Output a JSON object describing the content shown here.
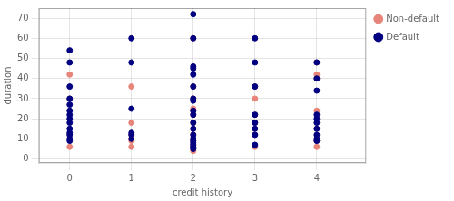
{
  "chart_data": {
    "type": "scatter",
    "xlabel": "credit history",
    "ylabel": "duration",
    "series": [
      {
        "name": "Non-default",
        "color": "#E8857A",
        "x": [
          0,
          0,
          0,
          1,
          1,
          1,
          1,
          1,
          1,
          2,
          2,
          2,
          2,
          2,
          2,
          2,
          2,
          2,
          2,
          2,
          2,
          2,
          2,
          2,
          3,
          3,
          3,
          3,
          3,
          3,
          4,
          4,
          4,
          4,
          4,
          4,
          4
        ],
        "values": [
          42,
          30,
          6,
          36,
          18,
          12,
          10,
          9,
          6,
          60,
          36,
          30,
          25,
          24,
          22,
          18,
          15,
          12,
          10,
          9,
          7,
          6,
          5,
          4,
          36,
          30,
          22,
          18,
          12,
          6,
          48,
          42,
          40,
          24,
          15,
          9,
          6
        ]
      },
      {
        "name": "Default",
        "color": "#000080",
        "x": [
          0,
          0,
          0,
          0,
          0,
          0,
          0,
          0,
          0,
          0,
          0,
          0,
          0,
          0,
          1,
          1,
          1,
          1,
          1,
          1,
          2,
          2,
          2,
          2,
          2,
          2,
          2,
          2,
          2,
          2,
          2,
          2,
          2,
          2,
          2,
          2,
          2,
          2,
          2,
          3,
          3,
          3,
          3,
          3,
          3,
          3,
          3,
          4,
          4,
          4,
          4,
          4,
          4,
          4,
          4,
          4,
          4
        ],
        "values": [
          54,
          48,
          36,
          30,
          27,
          24,
          22,
          20,
          18,
          15,
          13,
          12,
          10,
          9,
          60,
          48,
          25,
          13,
          12,
          10,
          72,
          60,
          46,
          45,
          42,
          36,
          30,
          29,
          24,
          22,
          18,
          15,
          12,
          10,
          9,
          8,
          7,
          6,
          5,
          60,
          48,
          36,
          22,
          18,
          15,
          12,
          7,
          48,
          40,
          34,
          22,
          20,
          18,
          15,
          12,
          10,
          9
        ]
      }
    ],
    "xlim": [
      -0.5,
      4.8
    ],
    "xticks": [
      0,
      1,
      2,
      3,
      4
    ],
    "ylim": [
      -2,
      75
    ],
    "yticks": [
      0,
      10,
      20,
      30,
      40,
      50,
      60,
      70
    ],
    "grid": true,
    "legend": "right"
  }
}
